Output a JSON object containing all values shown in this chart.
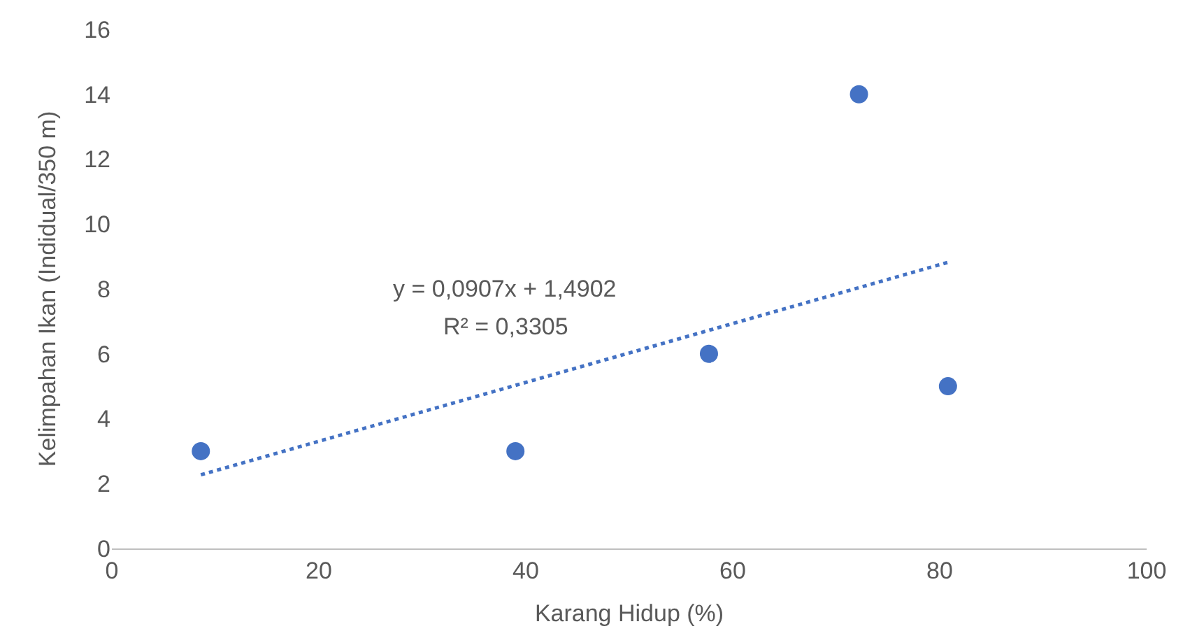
{
  "chart_data": {
    "type": "scatter",
    "xlabel": "Karang Hidup (%)",
    "ylabel": "Kelimpahan Ikan (Indidual/350 m)",
    "xlim": [
      0,
      100
    ],
    "xticks": [
      0,
      20,
      40,
      60,
      80,
      100
    ],
    "ylim": [
      0,
      16
    ],
    "yticks": [
      0,
      2,
      4,
      6,
      8,
      10,
      12,
      14,
      16
    ],
    "grid": false,
    "marker": "circle",
    "series": [
      {
        "color": "#4472c4",
        "x": [
          8.6,
          39.0,
          57.7,
          72.2,
          80.8
        ],
        "values": [
          3,
          3,
          6,
          14,
          5
        ]
      },
      {
        "type": "line",
        "color": "#4472c4",
        "line_style": "dotted",
        "marker": "none",
        "x": [
          8.6,
          80.8
        ],
        "values": [
          2.27,
          8.82
        ]
      }
    ],
    "annotations": [
      "y = 0,0907x + 1,4902",
      "R² = 0,3305"
    ]
  }
}
